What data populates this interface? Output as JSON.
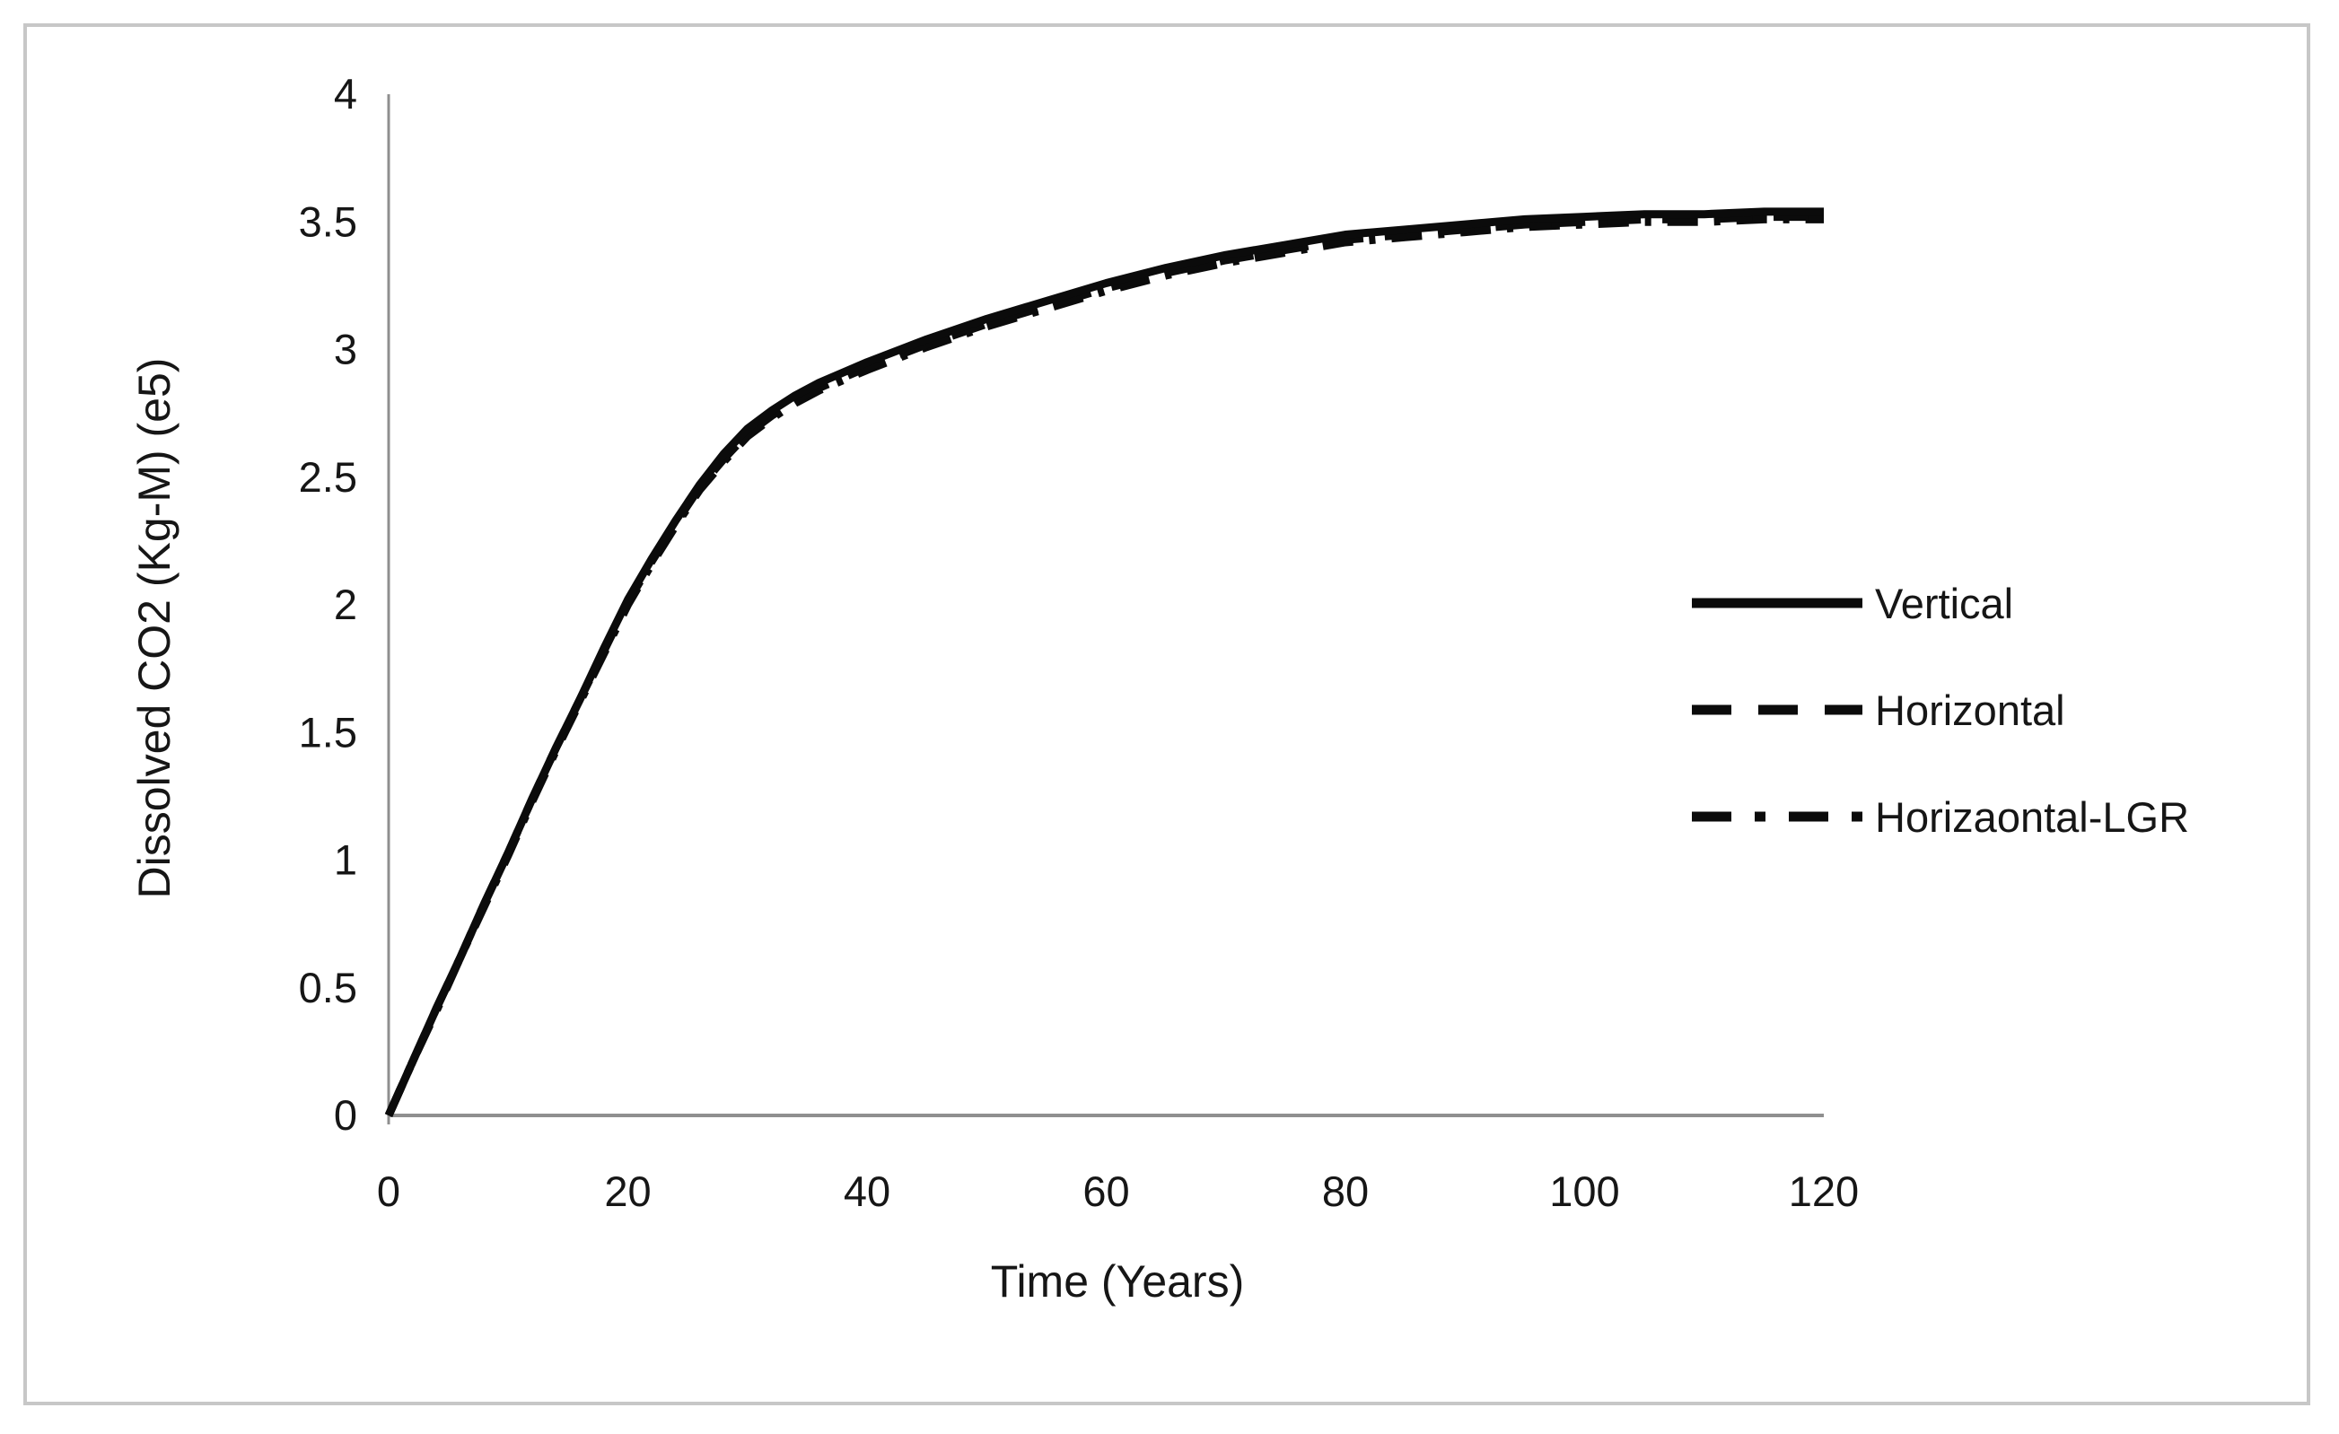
{
  "figure": {
    "background_color": "#ffffff",
    "border_color": "#c7c7c7",
    "line_color": "#0b0b0b",
    "axis_color": "#8f8f8f",
    "text_color": "#161616"
  },
  "chart_data": {
    "type": "line",
    "title": "",
    "xlabel": "Time (Years)",
    "ylabel": "Dissolved CO2 (Kg-M) (e5)",
    "xlim": [
      0,
      120
    ],
    "ylim": [
      0,
      4
    ],
    "x_ticks": [
      "0",
      "20",
      "40",
      "60",
      "80",
      "100",
      "120"
    ],
    "y_ticks": [
      "0",
      "0.5",
      "1",
      "1.5",
      "2",
      "2.5",
      "3",
      "3.5",
      "4"
    ],
    "grid": false,
    "legend_position": "right-middle",
    "x": [
      0,
      2,
      4,
      6,
      8,
      10,
      12,
      14,
      16,
      18,
      20,
      22,
      24,
      26,
      28,
      30,
      32,
      34,
      36,
      38,
      40,
      45,
      50,
      55,
      60,
      65,
      70,
      75,
      80,
      85,
      90,
      95,
      100,
      105,
      110,
      115,
      120
    ],
    "series": [
      {
        "name": "Vertical",
        "style": "solid",
        "color": "#0b0b0b",
        "values": [
          0,
          0.21,
          0.42,
          0.62,
          0.83,
          1.03,
          1.24,
          1.44,
          1.63,
          1.83,
          2.02,
          2.18,
          2.33,
          2.47,
          2.59,
          2.69,
          2.76,
          2.82,
          2.87,
          2.91,
          2.95,
          3.04,
          3.12,
          3.19,
          3.26,
          3.32,
          3.37,
          3.41,
          3.45,
          3.47,
          3.49,
          3.51,
          3.52,
          3.53,
          3.53,
          3.54,
          3.54
        ]
      },
      {
        "name": "Horizontal",
        "style": "dashed",
        "color": "#0b0b0b",
        "values": [
          0,
          0.21,
          0.42,
          0.62,
          0.83,
          1.03,
          1.24,
          1.44,
          1.63,
          1.82,
          2.01,
          2.17,
          2.32,
          2.46,
          2.57,
          2.67,
          2.74,
          2.8,
          2.85,
          2.89,
          2.93,
          3.02,
          3.1,
          3.17,
          3.24,
          3.3,
          3.35,
          3.39,
          3.43,
          3.45,
          3.47,
          3.49,
          3.5,
          3.51,
          3.51,
          3.52,
          3.52
        ]
      },
      {
        "name": "Horizaontal-LGR",
        "style": "dash-dot",
        "color": "#0b0b0b",
        "values": [
          0,
          0.21,
          0.41,
          0.62,
          0.82,
          1.02,
          1.23,
          1.43,
          1.62,
          1.81,
          2.0,
          2.16,
          2.31,
          2.45,
          2.56,
          2.66,
          2.73,
          2.79,
          2.84,
          2.88,
          2.92,
          3.01,
          3.09,
          3.16,
          3.23,
          3.29,
          3.34,
          3.38,
          3.42,
          3.44,
          3.46,
          3.48,
          3.49,
          3.5,
          3.5,
          3.51,
          3.51
        ]
      }
    ]
  }
}
